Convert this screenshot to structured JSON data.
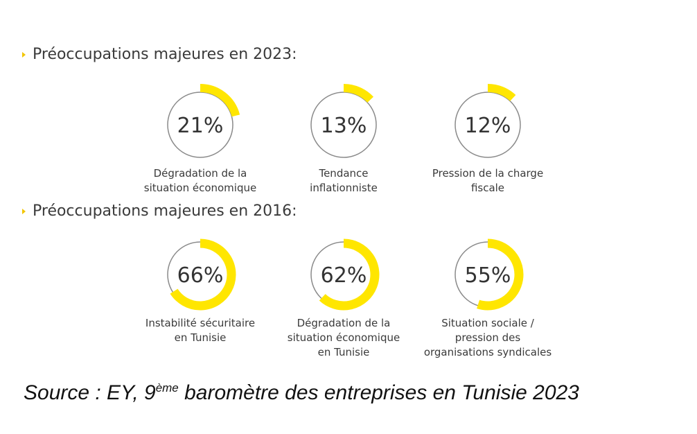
{
  "section_2023": {
    "title": "Préoccupations majeures en 2023:"
  },
  "section_2016": {
    "title": "Préoccupations majeures en 2016:"
  },
  "chart_data": [
    {
      "type": "pie",
      "title": "Préoccupations majeures en 2023:",
      "categories": [
        "Dégradation de la situation économique",
        "Tendance inflationniste",
        "Pression de la charge fiscale"
      ],
      "values": [
        21,
        13,
        12
      ],
      "value_labels": [
        "21%",
        "13%",
        "12%"
      ],
      "label_lines": [
        [
          "Dégradation de la",
          "situation économique"
        ],
        [
          "Tendance",
          "inflationniste"
        ],
        [
          "Pression de la charge",
          "fiscale"
        ]
      ]
    },
    {
      "type": "pie",
      "title": "Préoccupations majeures en 2016:",
      "categories": [
        "Instabilité sécuritaire en Tunisie",
        "Dégradation de la situation économique en Tunisie",
        "Situation sociale / pression des organisations syndicales"
      ],
      "values": [
        66,
        62,
        55
      ],
      "value_labels": [
        "66%",
        "62%",
        "55%"
      ],
      "label_lines": [
        [
          "Instabilité sécuritaire",
          "en Tunisie"
        ],
        [
          "Dégradation de la",
          "situation économique",
          "en Tunisie"
        ],
        [
          "Situation sociale /",
          "pression des",
          "organisations syndicales"
        ]
      ]
    }
  ],
  "colors": {
    "accent": "#FFE600",
    "ring": "#8a8a8a",
    "text": "#333333"
  },
  "source": {
    "prefix": "Source : EY, 9",
    "sup": "ème",
    "suffix": " baromètre des entreprises en Tunisie 2023"
  }
}
